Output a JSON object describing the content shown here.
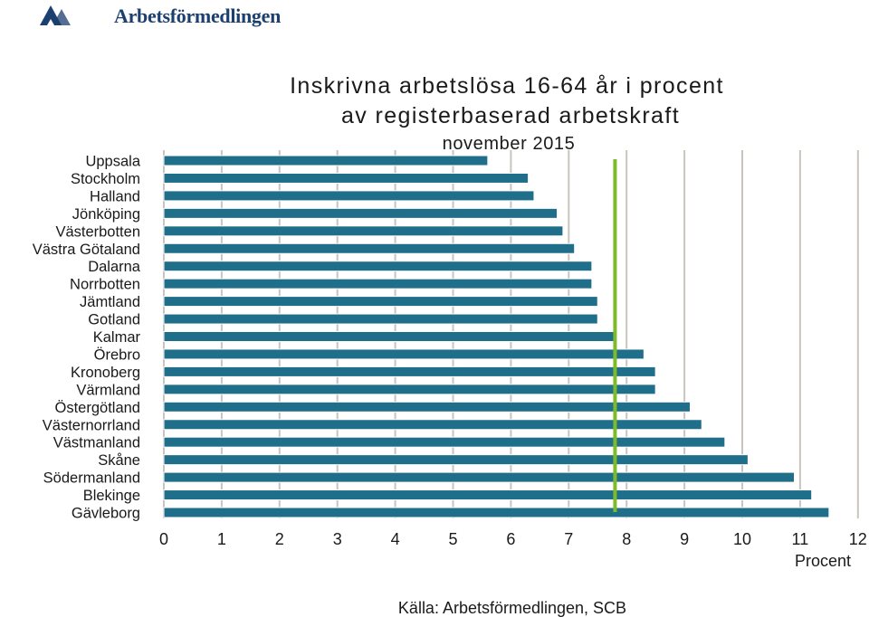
{
  "logo": {
    "text": "Arbetsförmedlingen"
  },
  "chart_data": {
    "type": "bar",
    "orientation": "horizontal",
    "title_line1": "Inskrivna arbetslösa 16-64 år i procent",
    "title_line2": "av registerbaserad arbetskraft",
    "subtitle": "november 2015",
    "categories": [
      "Uppsala",
      "Stockholm",
      "Halland",
      "Jönköping",
      "Västerbotten",
      "Västra Götaland",
      "Dalarna",
      "Norrbotten",
      "Jämtland",
      "Gotland",
      "Kalmar",
      "Örebro",
      "Kronoberg",
      "Värmland",
      "Östergötland",
      "Västernorrland",
      "Västmanland",
      "Skåne",
      "Södermanland",
      "Blekinge",
      "Gävleborg"
    ],
    "values": [
      5.6,
      6.3,
      6.4,
      6.8,
      6.9,
      7.1,
      7.4,
      7.4,
      7.5,
      7.5,
      7.8,
      8.3,
      8.5,
      8.5,
      9.1,
      9.3,
      9.7,
      10.1,
      10.9,
      11.2,
      11.5
    ],
    "reference_line": {
      "value": 7.8,
      "color": "#7dbb2a"
    },
    "xlabel": "Procent",
    "xlim": [
      0,
      12
    ],
    "xticks": [
      "0",
      "1",
      "2",
      "3",
      "4",
      "5",
      "6",
      "7",
      "8",
      "9",
      "10",
      "11",
      "12"
    ],
    "grid": "vertical",
    "bar_color": "#1f6f8b",
    "source": "Källa: Arbetsförmedlingen, SCB"
  }
}
